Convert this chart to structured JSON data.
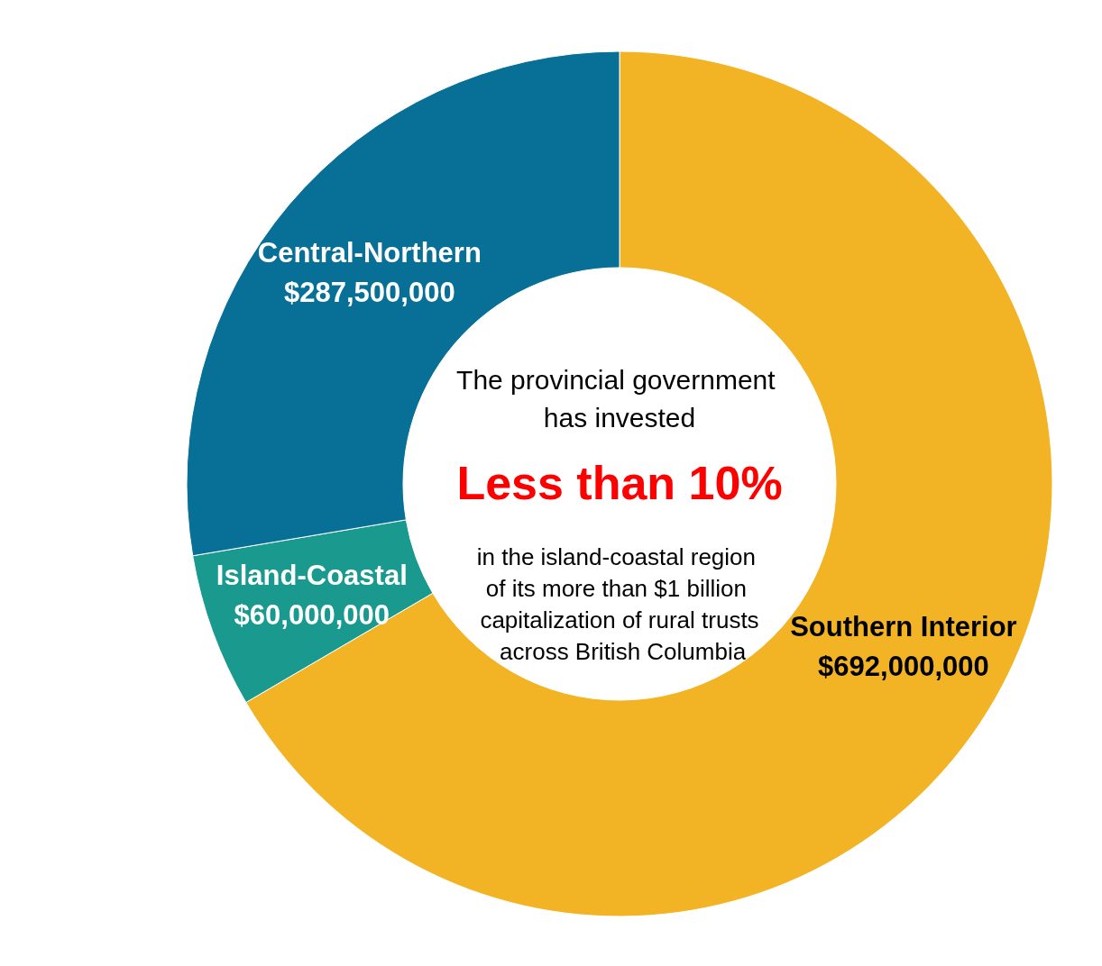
{
  "chart_data": {
    "type": "donut",
    "categories": [
      "Southern Interior",
      "Island-Coastal",
      "Central-Northern"
    ],
    "values": [
      692000000,
      60000000,
      287500000
    ],
    "colors": [
      "#f2b424",
      "#1a9a8e",
      "#086f96"
    ],
    "value_labels": [
      "$692,000,000",
      "$60,000,000",
      "$287,500,000"
    ],
    "annotations": [
      "The provincial government has invested",
      "Less than 10%",
      "in the island-coastal region of its more than $1 billion capitalization of rural trusts across British Columbia"
    ],
    "legend": false
  }
}
